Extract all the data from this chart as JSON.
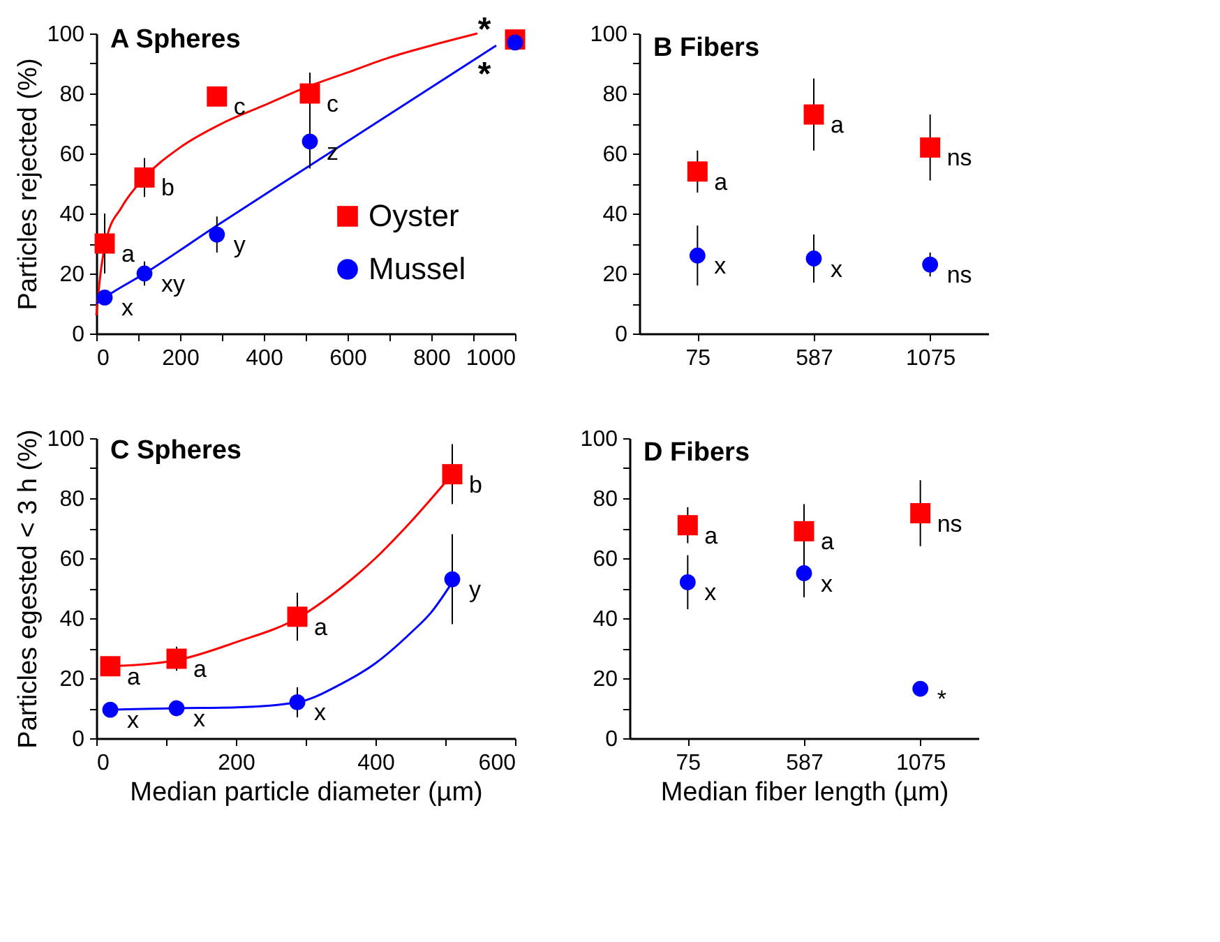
{
  "chart_data": [
    {
      "type": "scatter",
      "title": "A  Spheres",
      "ylabel": "Particles  rejected (%)",
      "xlim": [
        0,
        1000
      ],
      "xticks": [
        0,
        {
          "value": 100,
          "label": null
        },
        200,
        {
          "value": 300,
          "label": null
        },
        400,
        {
          "value": 500,
          "label": null
        },
        600,
        {
          "value": 700,
          "label": null
        },
        800,
        {
          "value": 900,
          "label": null
        },
        1000
      ],
      "ylim": [
        0,
        100
      ],
      "yticks": [
        0,
        {
          "value": 10,
          "label": null
        },
        20,
        {
          "value": 30,
          "label": null
        },
        40,
        {
          "value": 50,
          "label": null
        },
        60,
        {
          "value": 70,
          "label": null
        },
        80,
        {
          "value": 90,
          "label": null
        },
        100
      ],
      "grid": false,
      "legend": "bottom right",
      "annotations": [
        "*",
        "*"
      ],
      "series": [
        {
          "type": "line",
          "color": "#ff0000",
          "x": [
            0,
            10,
            25,
            60,
            115,
            200,
            300,
            400,
            500,
            600,
            700,
            800,
            910
          ],
          "values": [
            6,
            20,
            32,
            42,
            52,
            62,
            70,
            76,
            82,
            87,
            92,
            96,
            100
          ]
        },
        {
          "type": "line",
          "color": "#0000ff",
          "x": [
            0,
            20,
            115,
            288,
            510,
            955
          ],
          "values": [
            10,
            12,
            20,
            36,
            56,
            96
          ]
        },
        {
          "name": "Oyster",
          "color": "#ff0000",
          "marker": "square",
          "x": [
            20,
            115,
            288,
            510
          ],
          "values": [
            30,
            52,
            79,
            80
          ],
          "errors": [
            10,
            6.5,
            null,
            7
          ],
          "value_labels": [
            "a",
            "b",
            "c",
            "c"
          ]
        },
        {
          "name": "Mussel",
          "color": "#0000ff",
          "marker": "circle",
          "x": [
            20,
            115,
            288,
            510
          ],
          "values": [
            12,
            20,
            33,
            64
          ],
          "errors": [
            null,
            4,
            6,
            9
          ],
          "value_labels": [
            "x",
            "xy",
            "y",
            "z"
          ]
        },
        {
          "color": "#ff0000",
          "marker": "square",
          "x": [
            1000
          ],
          "values": [
            98
          ]
        },
        {
          "color": "#0000ff",
          "marker": "circle",
          "x": [
            1000
          ],
          "values": [
            97
          ]
        }
      ]
    },
    {
      "type": "scatter",
      "title": "B  Fibers",
      "categories": [
        "75",
        "587",
        "1075"
      ],
      "ylim": [
        0,
        100
      ],
      "yticks": [
        0,
        {
          "value": 10,
          "label": null
        },
        20,
        {
          "value": 30,
          "label": null
        },
        40,
        {
          "value": 50,
          "label": null
        },
        60,
        {
          "value": 70,
          "label": null
        },
        80,
        {
          "value": 90,
          "label": null
        },
        100
      ],
      "grid": false,
      "series": [
        {
          "color": "#ff0000",
          "marker": "square",
          "values": [
            54,
            73,
            null
          ],
          "errors": [
            7,
            12,
            null
          ],
          "value_labels": [
            "a",
            "a",
            null
          ]
        },
        {
          "color": "#ff0000",
          "marker": "square",
          "values": [
            null,
            null,
            62
          ],
          "errors": [
            null,
            null,
            11
          ],
          "value_labels": [
            null,
            null,
            "ns"
          ]
        },
        {
          "color": "#0000ff",
          "marker": "circle",
          "values": [
            26,
            25,
            null
          ],
          "errors": [
            10,
            8,
            null
          ],
          "value_labels": [
            "x",
            "x",
            null
          ]
        },
        {
          "color": "#0000ff",
          "marker": "circle",
          "values": [
            null,
            null,
            23
          ],
          "errors": [
            null,
            null,
            4
          ],
          "value_labels": [
            null,
            null,
            "ns"
          ]
        }
      ]
    },
    {
      "type": "scatter",
      "title": "C  Spheres",
      "xlabel": "Median particle diameter (µm)",
      "ylabel": "Particles  egested < 3 h (%)",
      "xlim": [
        0,
        600
      ],
      "xticks": [
        0,
        {
          "value": 100,
          "label": null
        },
        200,
        {
          "value": 300,
          "label": null
        },
        400,
        {
          "value": 500,
          "label": null
        },
        600
      ],
      "ylim": [
        0,
        100
      ],
      "yticks": [
        0,
        {
          "value": 10,
          "label": null
        },
        20,
        {
          "value": 30,
          "label": null
        },
        40,
        {
          "value": 50,
          "label": null
        },
        60,
        {
          "value": 70,
          "label": null
        },
        80,
        {
          "value": 90,
          "label": null
        },
        100
      ],
      "grid": false,
      "series": [
        {
          "type": "line",
          "color": "#ff0000",
          "x": [
            20,
            60,
            115,
            200,
            288,
            350,
            400,
            450,
            510
          ],
          "values": [
            24,
            24.5,
            26,
            32,
            40,
            50,
            60,
            72,
            88
          ]
        },
        {
          "type": "line",
          "color": "#0000ff",
          "x": [
            20,
            115,
            200,
            288,
            350,
            400,
            450,
            480,
            510
          ],
          "values": [
            9.5,
            10,
            10.3,
            12,
            18,
            25,
            35,
            42,
            52
          ]
        },
        {
          "color": "#ff0000",
          "marker": "square",
          "x": [
            20,
            115,
            288,
            510
          ],
          "values": [
            24,
            26.5,
            40.5,
            88
          ],
          "errors": [
            null,
            4,
            8,
            10
          ],
          "value_labels": [
            "a",
            "a",
            "a",
            "b"
          ]
        },
        {
          "color": "#0000ff",
          "marker": "circle",
          "x": [
            20,
            115,
            288,
            510
          ],
          "values": [
            9.5,
            10,
            12,
            53
          ],
          "errors": [
            null,
            null,
            5,
            15
          ],
          "value_labels": [
            "x",
            "x",
            "x",
            "y"
          ]
        }
      ]
    },
    {
      "type": "scatter",
      "title": "D  Fibers",
      "xlabel": "Median fiber length (µm)",
      "categories": [
        "75",
        "587",
        "1075"
      ],
      "ylim": [
        0,
        100
      ],
      "yticks": [
        0,
        {
          "value": 10,
          "label": null
        },
        20,
        {
          "value": 30,
          "label": null
        },
        40,
        {
          "value": 50,
          "label": null
        },
        60,
        {
          "value": 70,
          "label": null
        },
        80,
        {
          "value": 90,
          "label": null
        },
        100
      ],
      "grid": false,
      "series": [
        {
          "color": "#ff0000",
          "marker": "square",
          "values": [
            71,
            69,
            null
          ],
          "errors": [
            6,
            9,
            null
          ],
          "value_labels": [
            "a",
            "a",
            null
          ]
        },
        {
          "color": "#ff0000",
          "marker": "square",
          "values": [
            null,
            null,
            75
          ],
          "errors": [
            null,
            null,
            11
          ],
          "value_labels": [
            null,
            null,
            "ns"
          ]
        },
        {
          "color": "#0000ff",
          "marker": "circle",
          "values": [
            52,
            55,
            null
          ],
          "errors": [
            9,
            8,
            null
          ],
          "value_labels": [
            "x",
            "x",
            null
          ]
        },
        {
          "color": "#0000ff",
          "marker": "circle",
          "values": [
            null,
            null,
            16.5
          ],
          "errors": [
            null,
            null,
            null
          ],
          "value_labels": [
            null,
            null,
            "*"
          ]
        }
      ]
    }
  ]
}
